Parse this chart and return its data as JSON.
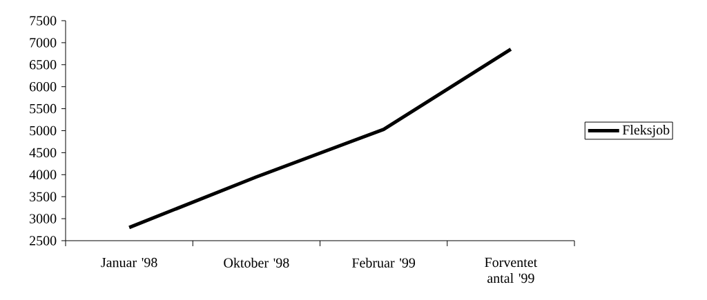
{
  "chart_data": {
    "type": "line",
    "categories": [
      "Januar '98",
      "Oktober '98",
      "Februar '99",
      "Forventet antal '99"
    ],
    "series": [
      {
        "name": "Fleksjob",
        "color": "#000000",
        "values": [
          2800,
          3950,
          5030,
          6850
        ]
      }
    ],
    "ylim": [
      2500,
      7500
    ],
    "yticks": [
      2500,
      3000,
      3500,
      4000,
      4500,
      5000,
      5500,
      6000,
      6500,
      7000,
      7500
    ],
    "legend": "right"
  }
}
